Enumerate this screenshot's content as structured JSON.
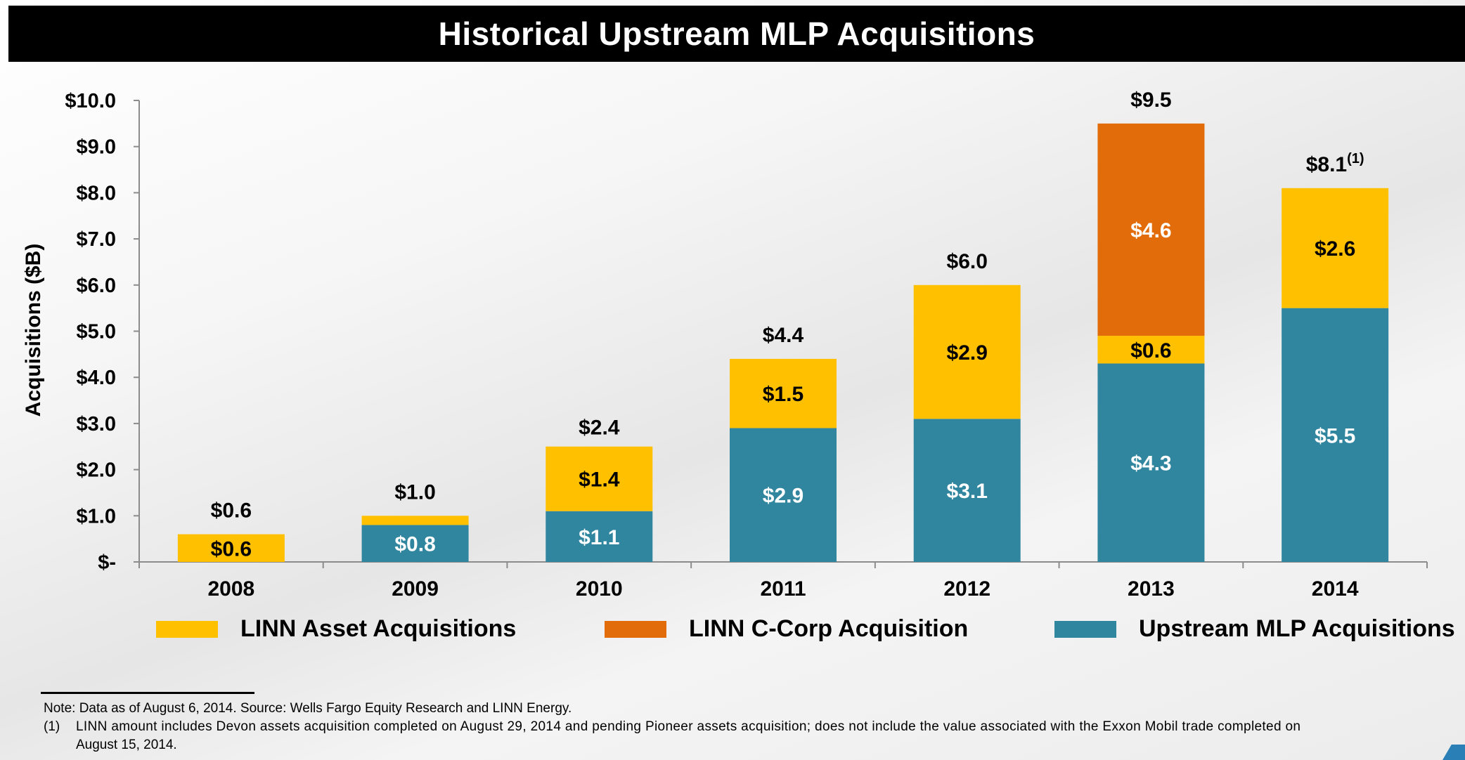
{
  "title": "Historical Upstream MLP Acquisitions",
  "chart_data": {
    "type": "bar",
    "stacked": true,
    "title": "Historical Upstream MLP Acquisitions",
    "xlabel": "",
    "ylabel": "Acquisitions ($B)",
    "ylim": [
      0,
      10
    ],
    "yticks": [
      0,
      1,
      2,
      3,
      4,
      5,
      6,
      7,
      8,
      9,
      10
    ],
    "ytick_labels": [
      "$-",
      "$1.0",
      "$2.0",
      "$3.0",
      "$4.0",
      "$5.0",
      "$6.0",
      "$7.0",
      "$8.0",
      "$9.0",
      "$10.0"
    ],
    "categories": [
      "2008",
      "2009",
      "2010",
      "2011",
      "2012",
      "2013",
      "2014"
    ],
    "series": [
      {
        "name": "Upstream MLP Acquisitions",
        "color": "#31869f",
        "values": [
          0,
          0.8,
          1.1,
          2.9,
          3.1,
          4.3,
          5.5
        ],
        "labels": [
          "",
          "$0.8",
          "$1.1",
          "$2.9",
          "$3.1",
          "$4.3",
          "$5.5"
        ],
        "label_color": "#ffffff"
      },
      {
        "name": "LINN Asset Acquisitions",
        "color": "#ffc000",
        "values": [
          0.6,
          0.2,
          1.4,
          1.5,
          2.9,
          0.6,
          2.6
        ],
        "labels": [
          "$0.6",
          "",
          "$1.4",
          "$1.5",
          "$2.9",
          "$0.6",
          "$2.6"
        ],
        "label_color": "#000000"
      },
      {
        "name": "LINN C-Corp Acquisition",
        "color": "#e36c0a",
        "values": [
          0,
          0,
          0,
          0,
          0,
          4.6,
          0
        ],
        "labels": [
          "",
          "",
          "",
          "",
          "",
          "$4.6",
          ""
        ],
        "label_color": "#ffffff"
      }
    ],
    "totals": [
      0.6,
      1.0,
      2.4,
      4.4,
      6.0,
      9.5,
      8.1
    ],
    "total_labels": [
      "$0.6",
      "$1.0",
      "$2.4",
      "$4.4",
      "$6.0",
      "$9.5",
      "$8.1"
    ],
    "total_footnotes": [
      "",
      "",
      "",
      "",
      "",
      "",
      "(1)"
    ],
    "grid": false,
    "legend_position": "bottom",
    "legend_order": [
      "LINN Asset Acquisitions",
      "LINN C-Corp Acquisition",
      "Upstream MLP Acquisitions"
    ]
  },
  "legend": [
    {
      "label": "LINN Asset Acquisitions",
      "color": "#ffc000"
    },
    {
      "label": "LINN C-Corp Acquisition",
      "color": "#e36c0a"
    },
    {
      "label": "Upstream MLP Acquisitions",
      "color": "#31869f"
    }
  ],
  "notes": {
    "note": "Note: Data as of August 6, 2014.  Source: Wells Fargo Equity Research and LINN Energy.",
    "footnote_marker": "(1)",
    "footnote_line1": "LINN amount includes Devon assets acquisition completed on August 29, 2014 and pending Pioneer assets acquisition; does not include the value associated with the Exxon Mobil trade completed on",
    "footnote_line2": "August 15, 2014."
  }
}
